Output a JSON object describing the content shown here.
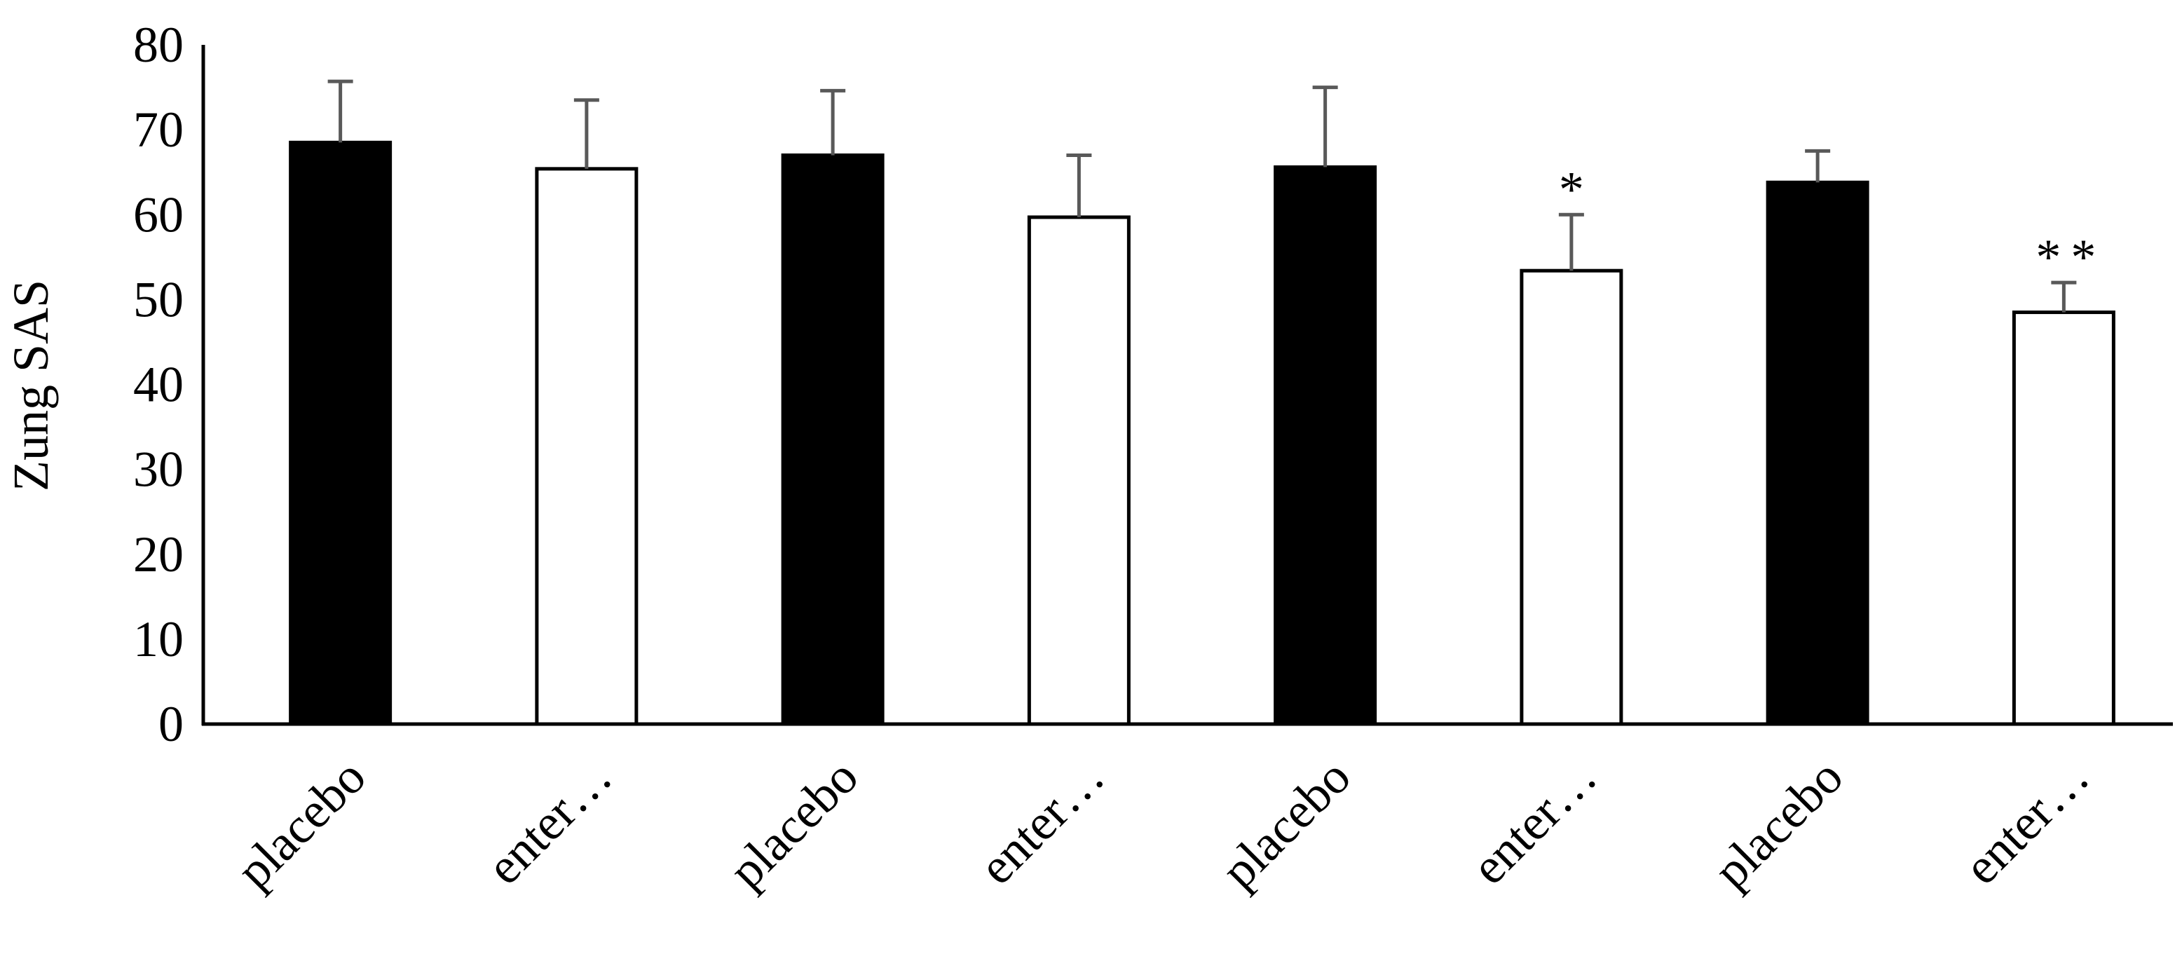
{
  "chart_data": {
    "type": "bar",
    "ylabel": "Zung SAS",
    "xlabel": "",
    "title": "",
    "ylim": [
      0,
      80
    ],
    "yticks": [
      0,
      10,
      20,
      30,
      40,
      50,
      60,
      70,
      80
    ],
    "grid": false,
    "legend": "none",
    "categories": [
      "placebo",
      "enter…",
      "placebo",
      "enter…",
      "placebo",
      "enter…",
      "placebo",
      "enter…"
    ],
    "values": [
      68.5,
      65.4,
      67.0,
      59.7,
      65.6,
      53.4,
      63.8,
      48.5
    ],
    "error_plus": [
      7.2,
      8.1,
      7.6,
      7.3,
      9.4,
      6.6,
      3.7,
      3.5
    ],
    "fill": [
      "black",
      "white",
      "black",
      "white",
      "black",
      "white",
      "black",
      "white"
    ],
    "annotations": [
      "",
      "",
      "",
      "",
      "",
      "*",
      "",
      "**"
    ]
  },
  "colors": {
    "filled_bar": "#000000",
    "open_bar": "#ffffff",
    "bar_outline": "#000000",
    "error_bar": "#595959",
    "axis": "#000000"
  }
}
